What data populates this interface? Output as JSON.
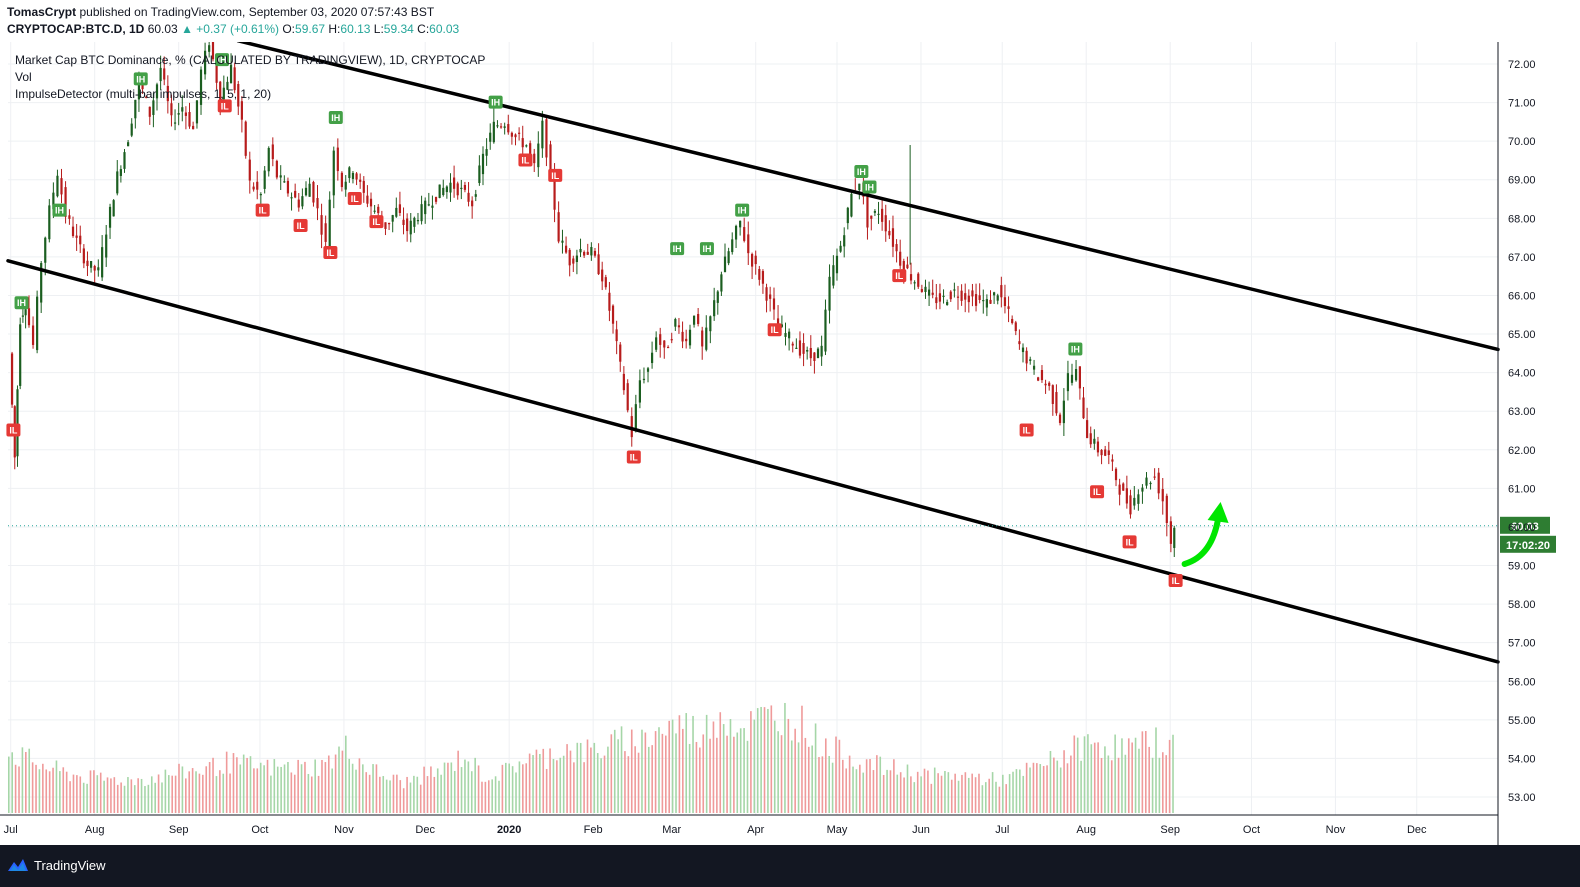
{
  "header": {
    "author": "TomasCrypt",
    "published_text": "published on TradingView.com, September 03, 2020 07:57:43 BST",
    "symbol": "CRYPTOCAP:BTC.D, 1D",
    "last": "60.03",
    "change": "▲ +0.37 (+0.61%)",
    "o_label": "O:",
    "o_value": "59.67",
    "h_label": "H:",
    "h_value": "60.13",
    "l_label": "L:",
    "l_value": "59.34",
    "c_label": "C:",
    "c_value": "60.03"
  },
  "legend": {
    "main": "Market Cap BTC Dominance, % (CALCULATED BY TRADINGVIEW), 1D, CRYPTOCAP",
    "vol": "Vol",
    "indicator": "ImpulseDetector (multi-bar impulses, 1, 5, 1, 20)"
  },
  "footer": {
    "brand": "TradingView",
    "logo_icon": "tradingview-logo-icon"
  },
  "colors": {
    "up": "#26a69a",
    "down": "#ef5350",
    "candle_up": "#1b5e20",
    "candle_down": "#b71c1c",
    "ih_badge": "#43a047",
    "il_badge": "#e53935",
    "trendline": "#000000",
    "arrow": "#00e600",
    "price_tag": "#2e7d32"
  },
  "chart_data": {
    "type": "line",
    "title": "Market Cap BTC Dominance, % (CALCULATED BY TRADINGVIEW), 1D, CRYPTOCAP",
    "xlabel": "",
    "ylabel": "",
    "x_ticks": [
      "Jul",
      "Aug",
      "Sep",
      "Oct",
      "Nov",
      "Dec",
      "2020",
      "Feb",
      "Mar",
      "Apr",
      "May",
      "Jun",
      "Jul",
      "Aug",
      "Sep",
      "Oct",
      "Nov",
      "Dec"
    ],
    "y_ticks": [
      "53.00",
      "54.00",
      "55.00",
      "56.00",
      "57.00",
      "58.00",
      "59.00",
      "60.00",
      "61.00",
      "62.00",
      "63.00",
      "64.00",
      "65.00",
      "66.00",
      "67.00",
      "68.00",
      "69.00",
      "70.00",
      "71.00",
      "72.00"
    ],
    "ylim": [
      52.5,
      72.5
    ],
    "x_range": [
      "2019-06-30",
      "2020-12-31"
    ],
    "current_price": "60.03",
    "countdown": "17:02:20",
    "series": [
      {
        "points": [
          [
            "2019-07-01",
            64.5
          ],
          [
            "2019-07-03",
            61.8
          ],
          [
            "2019-07-05",
            65.4
          ],
          [
            "2019-07-07",
            65.8
          ],
          [
            "2019-07-10",
            64.7
          ],
          [
            "2019-07-13",
            66.9
          ],
          [
            "2019-07-16",
            68.2
          ],
          [
            "2019-07-19",
            69.2
          ],
          [
            "2019-07-22",
            68.1
          ],
          [
            "2019-07-26",
            67.4
          ],
          [
            "2019-07-30",
            66.8
          ],
          [
            "2019-08-03",
            66.6
          ],
          [
            "2019-08-06",
            67.7
          ],
          [
            "2019-08-10",
            69.1
          ],
          [
            "2019-08-14",
            70.1
          ],
          [
            "2019-08-18",
            71.6
          ],
          [
            "2019-08-22",
            70.7
          ],
          [
            "2019-08-26",
            71.9
          ],
          [
            "2019-08-30",
            70.5
          ],
          [
            "2019-09-03",
            70.9
          ],
          [
            "2019-09-07",
            70.3
          ],
          [
            "2019-09-10",
            71.8
          ],
          [
            "2019-09-13",
            72.6
          ],
          [
            "2019-09-17",
            71.1
          ],
          [
            "2019-09-21",
            71.9
          ],
          [
            "2019-09-25",
            70.4
          ],
          [
            "2019-09-28",
            68.9
          ],
          [
            "2019-10-02",
            68.6
          ],
          [
            "2019-10-05",
            69.8
          ],
          [
            "2019-10-08",
            69.1
          ],
          [
            "2019-10-12",
            68.7
          ],
          [
            "2019-10-16",
            68.4
          ],
          [
            "2019-10-20",
            68.9
          ],
          [
            "2019-10-23",
            68.2
          ],
          [
            "2019-10-26",
            67.3
          ],
          [
            "2019-10-29",
            69.8
          ],
          [
            "2019-11-01",
            68.9
          ],
          [
            "2019-11-05",
            69.3
          ],
          [
            "2019-11-09",
            68.6
          ],
          [
            "2019-11-13",
            68.2
          ],
          [
            "2019-11-17",
            67.8
          ],
          [
            "2019-11-21",
            68.2
          ],
          [
            "2019-11-25",
            67.7
          ],
          [
            "2019-11-29",
            68.1
          ],
          [
            "2019-12-03",
            68.4
          ],
          [
            "2019-12-07",
            68.7
          ],
          [
            "2019-12-11",
            68.9
          ],
          [
            "2019-12-15",
            68.7
          ],
          [
            "2019-12-19",
            68.4
          ],
          [
            "2019-12-23",
            69.6
          ],
          [
            "2019-12-27",
            70.4
          ],
          [
            "2019-12-31",
            70.5
          ],
          [
            "2020-01-04",
            70.1
          ],
          [
            "2020-01-08",
            69.9
          ],
          [
            "2020-01-11",
            69.3
          ],
          [
            "2020-01-14",
            70.4
          ],
          [
            "2020-01-17",
            69.1
          ],
          [
            "2020-01-20",
            67.5
          ],
          [
            "2020-01-24",
            66.9
          ],
          [
            "2020-01-28",
            67.2
          ],
          [
            "2020-02-01",
            67.1
          ],
          [
            "2020-02-05",
            66.5
          ],
          [
            "2020-02-09",
            65.2
          ],
          [
            "2020-02-13",
            63.6
          ],
          [
            "2020-02-16",
            62.4
          ],
          [
            "2020-02-19",
            63.8
          ],
          [
            "2020-02-22",
            64.1
          ],
          [
            "2020-02-25",
            65.0
          ],
          [
            "2020-02-28",
            64.5
          ],
          [
            "2020-03-03",
            65.3
          ],
          [
            "2020-03-07",
            64.8
          ],
          [
            "2020-03-10",
            65.6
          ],
          [
            "2020-03-13",
            64.6
          ],
          [
            "2020-03-16",
            65.4
          ],
          [
            "2020-03-20",
            66.6
          ],
          [
            "2020-03-24",
            67.4
          ],
          [
            "2020-03-27",
            67.9
          ],
          [
            "2020-03-30",
            67.1
          ],
          [
            "2020-04-03",
            66.5
          ],
          [
            "2020-04-07",
            65.8
          ],
          [
            "2020-04-10",
            65.2
          ],
          [
            "2020-04-14",
            64.9
          ],
          [
            "2020-04-18",
            64.6
          ],
          [
            "2020-04-22",
            64.4
          ],
          [
            "2020-04-26",
            64.6
          ],
          [
            "2020-04-29",
            66.4
          ],
          [
            "2020-05-03",
            67.3
          ],
          [
            "2020-05-07",
            68.6
          ],
          [
            "2020-05-10",
            69.0
          ],
          [
            "2020-05-13",
            67.9
          ],
          [
            "2020-05-17",
            68.2
          ],
          [
            "2020-05-21",
            67.6
          ],
          [
            "2020-05-25",
            66.9
          ],
          [
            "2020-05-29",
            66.5
          ],
          [
            "2020-06-02",
            66.2
          ],
          [
            "2020-06-06",
            65.9
          ],
          [
            "2020-06-10",
            65.9
          ],
          [
            "2020-06-14",
            66.1
          ],
          [
            "2020-06-18",
            66.0
          ],
          [
            "2020-06-22",
            65.9
          ],
          [
            "2020-06-26",
            65.8
          ],
          [
            "2020-06-30",
            66.1
          ],
          [
            "2020-07-04",
            65.5
          ],
          [
            "2020-07-08",
            64.7
          ],
          [
            "2020-07-12",
            64.2
          ],
          [
            "2020-07-15",
            63.9
          ],
          [
            "2020-07-19",
            63.6
          ],
          [
            "2020-07-23",
            62.8
          ],
          [
            "2020-07-26",
            63.9
          ],
          [
            "2020-07-29",
            64.0
          ],
          [
            "2020-08-02",
            62.4
          ],
          [
            "2020-08-06",
            62.0
          ],
          [
            "2020-08-10",
            61.8
          ],
          [
            "2020-08-14",
            61.0
          ],
          [
            "2020-08-18",
            60.5
          ],
          [
            "2020-08-21",
            61.0
          ],
          [
            "2020-08-24",
            61.2
          ],
          [
            "2020-08-27",
            61.3
          ],
          [
            "2020-08-30",
            60.7
          ],
          [
            "2020-09-02",
            59.6
          ],
          [
            "2020-09-03",
            60.03
          ]
        ]
      }
    ],
    "volume": {
      "name": "Vol",
      "x_range": [
        "2019-06-30",
        "2020-09-03"
      ],
      "relative_levels": [
        0.48,
        0.42,
        0.36,
        0.31,
        0.28,
        0.27,
        0.26,
        0.27,
        0.3,
        0.33,
        0.35,
        0.4,
        0.38,
        0.36,
        0.36,
        0.36,
        0.38,
        0.52,
        0.37,
        0.29,
        0.24,
        0.3,
        0.34,
        0.46,
        0.29,
        0.32,
        0.43,
        0.44,
        0.52,
        0.48,
        0.51,
        0.57,
        0.58,
        0.66,
        0.71,
        0.62,
        0.81,
        0.67,
        0.74,
        0.78,
        0.72,
        0.55,
        0.48,
        0.41,
        0.37,
        0.34,
        0.31,
        0.29,
        0.3,
        0.28,
        0.26,
        0.3,
        0.37,
        0.43,
        0.52,
        0.56,
        0.52,
        0.52,
        0.57,
        0.54
      ],
      "volume_ticks": []
    },
    "trendlines": [
      {
        "name": "upper-channel",
        "from": [
          "2019-09-23",
          72.6
        ],
        "to": [
          "2020-12-31",
          64.6
        ]
      },
      {
        "name": "lower-channel",
        "from": [
          "2019-06-30",
          66.9
        ],
        "to": [
          "2020-12-31",
          56.5
        ]
      }
    ],
    "markers": [
      {
        "label": "IH",
        "date": "2019-07-05",
        "value": 65.8
      },
      {
        "label": "IH",
        "date": "2019-07-19",
        "value": 68.2
      },
      {
        "label": "IH",
        "date": "2019-08-18",
        "value": 71.6
      },
      {
        "label": "IH",
        "date": "2019-09-17",
        "value": 72.1
      },
      {
        "label": "IH",
        "date": "2019-10-29",
        "value": 70.6
      },
      {
        "label": "IH",
        "date": "2019-12-27",
        "value": 71.0
      },
      {
        "label": "IH",
        "date": "2020-03-03",
        "value": 67.2
      },
      {
        "label": "IH",
        "date": "2020-03-14",
        "value": 67.2
      },
      {
        "label": "IH",
        "date": "2020-03-27",
        "value": 68.2
      },
      {
        "label": "IH",
        "date": "2020-05-10",
        "value": 69.2
      },
      {
        "label": "IH",
        "date": "2020-05-13",
        "value": 68.8
      },
      {
        "label": "IH",
        "date": "2020-07-28",
        "value": 64.6
      },
      {
        "label": "IL",
        "date": "2019-07-02",
        "value": 62.5
      },
      {
        "label": "IL",
        "date": "2019-09-18",
        "value": 70.9
      },
      {
        "label": "IL",
        "date": "2019-10-02",
        "value": 68.2
      },
      {
        "label": "IL",
        "date": "2019-10-16",
        "value": 67.8
      },
      {
        "label": "IL",
        "date": "2019-10-27",
        "value": 67.1
      },
      {
        "label": "IL",
        "date": "2019-11-05",
        "value": 68.5
      },
      {
        "label": "IL",
        "date": "2019-11-13",
        "value": 67.9
      },
      {
        "label": "IL",
        "date": "2020-01-07",
        "value": 69.5
      },
      {
        "label": "IL",
        "date": "2020-01-18",
        "value": 69.1
      },
      {
        "label": "IL",
        "date": "2020-02-16",
        "value": 61.8
      },
      {
        "label": "IL",
        "date": "2020-04-08",
        "value": 65.1
      },
      {
        "label": "IL",
        "date": "2020-05-24",
        "value": 66.5
      },
      {
        "label": "IL",
        "date": "2020-07-10",
        "value": 62.5
      },
      {
        "label": "IL",
        "date": "2020-08-05",
        "value": 60.9
      },
      {
        "label": "IL",
        "date": "2020-08-17",
        "value": 59.6
      },
      {
        "label": "IL",
        "date": "2020-09-03",
        "value": 58.6
      }
    ],
    "annotation": {
      "type": "arrow-up",
      "date": "2020-09-10",
      "value": 59.3
    }
  }
}
